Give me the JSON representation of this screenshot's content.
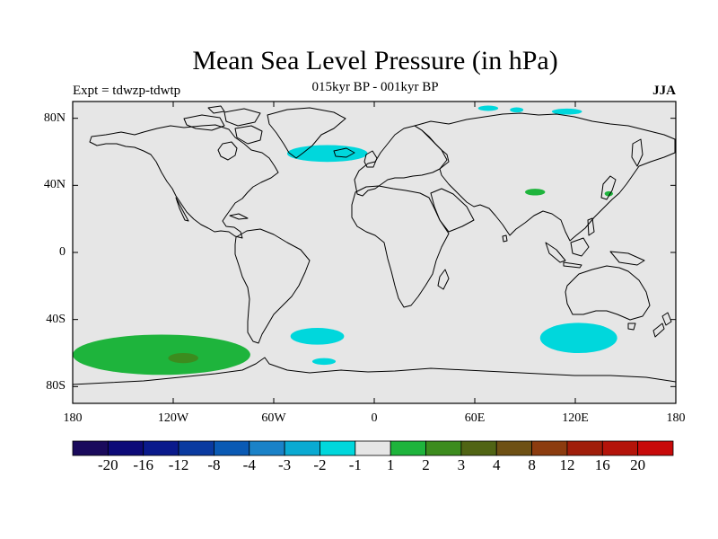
{
  "title": "Mean Sea Level Pressure (in hPa)",
  "subtitle": "015kyr BP - 001kyr BP",
  "experiment": "Expt = tdwzp-tdwtp",
  "season": "JJA",
  "map": {
    "projection": "cylindrical-equidistant",
    "lon_range": [
      -180,
      180
    ],
    "lat_range": [
      -90,
      90
    ],
    "background_color": "#e6e6e6",
    "coastline_color": "#000000",
    "lat_ticks": [
      {
        "value": 80,
        "label": "80N"
      },
      {
        "value": 40,
        "label": "40N"
      },
      {
        "value": 0,
        "label": "0"
      },
      {
        "value": -40,
        "label": "40S"
      },
      {
        "value": -80,
        "label": "80S"
      }
    ],
    "lon_ticks": [
      {
        "value": -180,
        "label": "180"
      },
      {
        "value": -120,
        "label": "120W"
      },
      {
        "value": -60,
        "label": "60W"
      },
      {
        "value": 0,
        "label": "0"
      },
      {
        "value": 60,
        "label": "60E"
      },
      {
        "value": 120,
        "label": "120E"
      },
      {
        "value": 180,
        "label": "180"
      }
    ]
  },
  "colorbar": {
    "colors": [
      "#1a0a5c",
      "#0d0a78",
      "#0a1a8c",
      "#0a3aa0",
      "#0a5ab4",
      "#1a82c8",
      "#0aaad2",
      "#00d7dc",
      "#e6e6e6",
      "#1eb43c",
      "#3c8c1e",
      "#506414",
      "#6e5014",
      "#8c3c0f",
      "#a01e0a",
      "#b4140a",
      "#c80a0a"
    ],
    "labels": [
      "-20",
      "-16",
      "-12",
      "-8",
      "-4",
      "-3",
      "-2",
      "-1",
      "1",
      "2",
      "3",
      "4",
      "8",
      "12",
      "16",
      "20"
    ]
  },
  "anomaly_regions": [
    {
      "level": "-1",
      "color": "#00d7dc",
      "shape": "ellipse",
      "lon": -28,
      "lat": 59,
      "rlon": 24,
      "rlat": 5
    },
    {
      "level": "-1",
      "color": "#00d7dc",
      "shape": "ellipse",
      "lon": -34,
      "lat": -50,
      "rlon": 16,
      "rlat": 5
    },
    {
      "level": "-1",
      "color": "#00d7dc",
      "shape": "ellipse",
      "lon": -30,
      "lat": -65,
      "rlon": 7,
      "rlat": 2
    },
    {
      "level": "-1",
      "color": "#00d7dc",
      "shape": "ellipse",
      "lon": 122,
      "lat": -51,
      "rlon": 23,
      "rlat": 9
    },
    {
      "level": "-1",
      "color": "#00d7dc",
      "shape": "ellipse",
      "lon": 68,
      "lat": 86,
      "rlon": 6,
      "rlat": 1.6
    },
    {
      "level": "-1",
      "color": "#00d7dc",
      "shape": "ellipse",
      "lon": 115,
      "lat": 84,
      "rlon": 9,
      "rlat": 1.8
    },
    {
      "level": "-1",
      "color": "#00d7dc",
      "shape": "ellipse",
      "lon": 85,
      "lat": 85,
      "rlon": 4,
      "rlat": 1.5
    },
    {
      "level": "2",
      "color": "#1eb43c",
      "shape": "ellipse",
      "lon": -127,
      "lat": -61,
      "rlon": 53,
      "rlat": 12
    },
    {
      "level": "2",
      "color": "#1eb43c",
      "shape": "ellipse",
      "lon": 96,
      "lat": 36,
      "rlon": 6,
      "rlat": 2
    },
    {
      "level": "2",
      "color": "#1eb43c",
      "shape": "ellipse",
      "lon": 140,
      "lat": 35,
      "rlon": 2.5,
      "rlat": 1.5
    },
    {
      "level": "3",
      "color": "#3c8c1e",
      "shape": "ellipse",
      "lon": -114,
      "lat": -63,
      "rlon": 9,
      "rlat": 3
    }
  ]
}
